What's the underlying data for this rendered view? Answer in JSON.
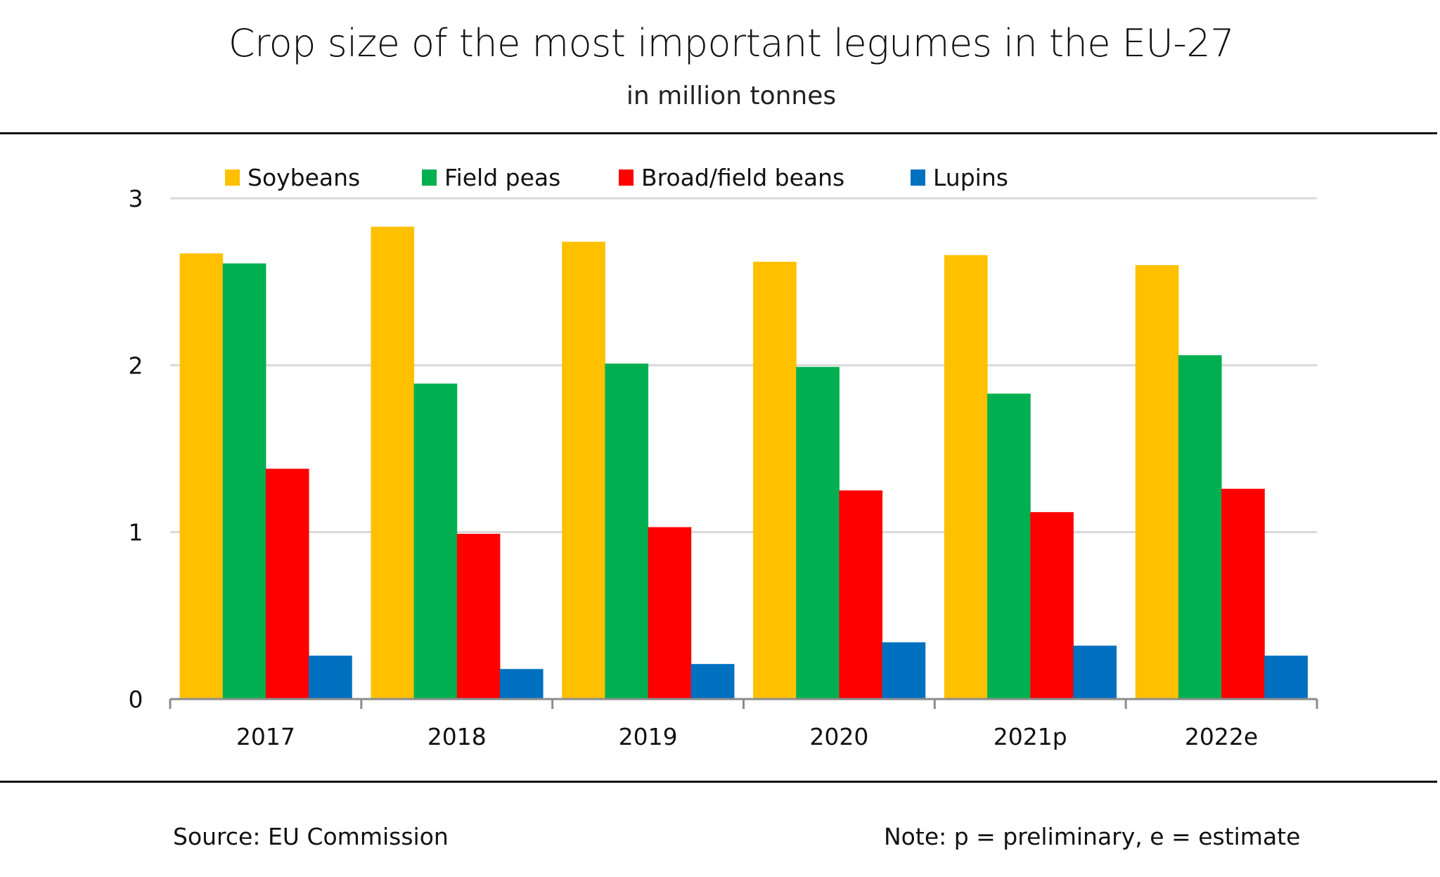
{
  "header": {
    "title": "Crop size of the most important legumes in the EU-27",
    "subtitle": "in million tonnes"
  },
  "footer": {
    "source": "Source: EU Commission",
    "note": "Note: p = preliminary, e = estimate"
  },
  "chart_data": {
    "type": "bar",
    "title": "Crop size of the most important legumes in the EU-27",
    "subtitle": "in million tonnes",
    "xlabel": "",
    "ylabel": "million tonnes",
    "ylim": [
      0,
      3
    ],
    "yticks": [
      0,
      1,
      2,
      3
    ],
    "ytick_labels": [
      "0",
      "1",
      "2",
      "3"
    ],
    "grid": true,
    "legend_position": "top",
    "categories": [
      "2017",
      "2018",
      "2019",
      "2020",
      "2021p",
      "2022e"
    ],
    "series": [
      {
        "name": "Soybeans",
        "color": "#FFC000",
        "values": [
          2.67,
          2.83,
          2.74,
          2.62,
          2.66,
          2.6
        ]
      },
      {
        "name": "Field peas",
        "color": "#00B050",
        "values": [
          2.61,
          1.89,
          2.01,
          1.99,
          1.83,
          2.06
        ]
      },
      {
        "name": "Broad/field beans",
        "color": "#FF0000",
        "values": [
          1.38,
          0.99,
          1.03,
          1.25,
          1.12,
          1.26
        ]
      },
      {
        "name": "Lupins",
        "color": "#0070C0",
        "values": [
          0.26,
          0.18,
          0.21,
          0.34,
          0.32,
          0.26
        ]
      }
    ]
  }
}
